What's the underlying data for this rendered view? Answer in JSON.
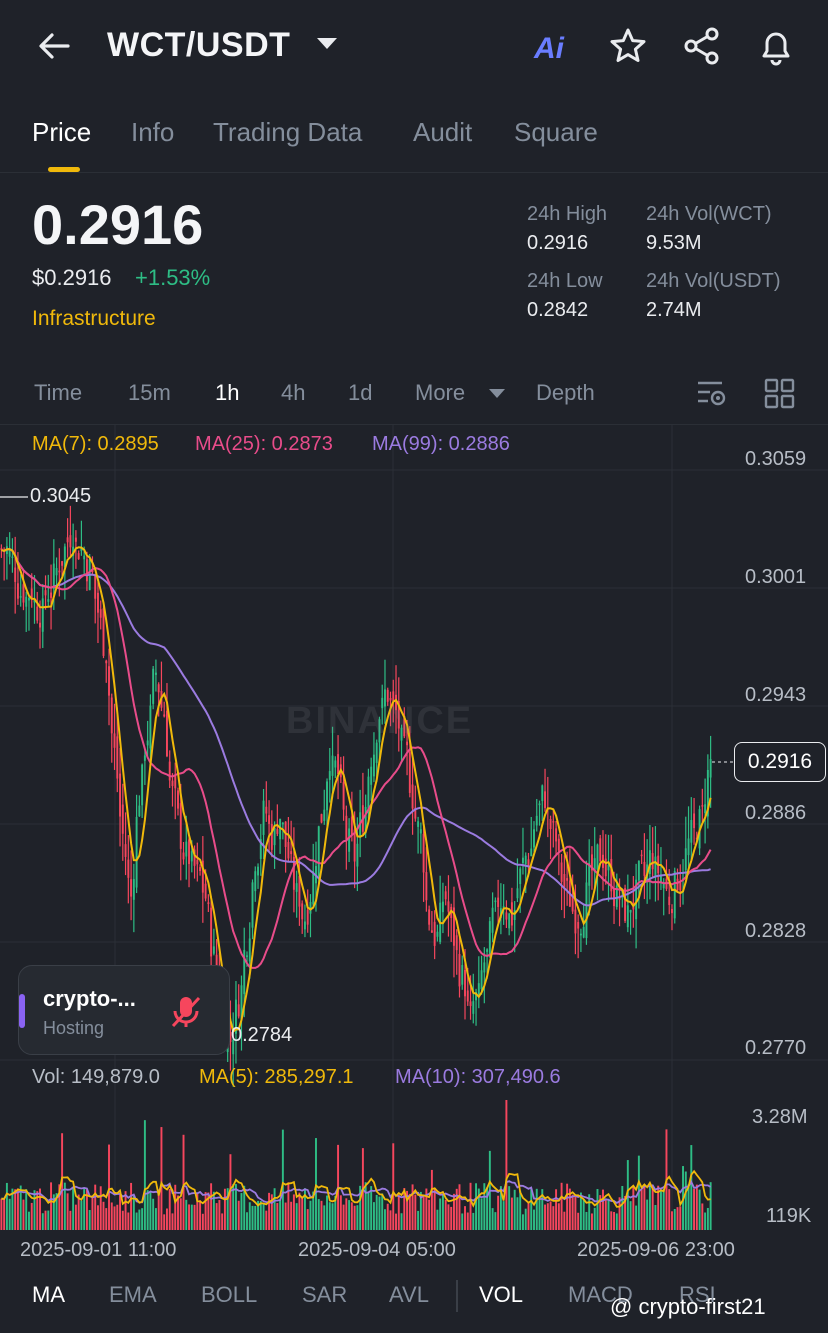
{
  "header": {
    "pair": "WCT/USDT",
    "icons": [
      "back-arrow-icon",
      "dropdown-caret-icon",
      "ai-icon",
      "star-icon",
      "share-icon",
      "bell-icon"
    ],
    "ai_label": "Ai"
  },
  "tabs": [
    {
      "label": "Price",
      "active": true
    },
    {
      "label": "Info"
    },
    {
      "label": "Trading Data"
    },
    {
      "label": "Audit"
    },
    {
      "label": "Square"
    }
  ],
  "price": {
    "last": "0.2916",
    "usd": "$0.2916",
    "change": "+1.53%",
    "category": "Infrastructure"
  },
  "stats": {
    "high_label": "24h High",
    "high": "0.2916",
    "low_label": "24h Low",
    "low": "0.2842",
    "vol_base_label": "24h Vol(WCT)",
    "vol_base": "9.53M",
    "vol_quote_label": "24h Vol(USDT)",
    "vol_quote": "2.74M"
  },
  "intervals": [
    "Time",
    "15m",
    "1h",
    "4h",
    "1d",
    "More",
    "Depth"
  ],
  "active_interval": "1h",
  "ma": {
    "ma7": "MA(7): 0.2895",
    "ma25": "MA(25): 0.2873",
    "ma99": "MA(99): 0.2886"
  },
  "colors": {
    "up": "#2ebd85",
    "down": "#f6465d",
    "ma7": "#f0b90b",
    "ma25": "#e84c8a",
    "ma99": "#9b7be0",
    "accent": "#f0b90b"
  },
  "chart_data": {
    "type": "candlestick",
    "price_axis": [
      "0.3059",
      "0.3001",
      "0.2943",
      "0.2886",
      "0.2828",
      "0.2770"
    ],
    "ylim": [
      0.277,
      0.3059
    ],
    "high_marker": "0.3045",
    "low_marker": "0.2784",
    "last_price_tag": "0.2916",
    "close_series": [
      0.302,
      0.301,
      0.3,
      0.3,
      0.299,
      0.3,
      0.301,
      0.302,
      0.303,
      0.302,
      0.301,
      0.299,
      0.297,
      0.292,
      0.288,
      0.285,
      0.29,
      0.293,
      0.296,
      0.294,
      0.29,
      0.288,
      0.287,
      0.286,
      0.285,
      0.282,
      0.279,
      0.278,
      0.28,
      0.283,
      0.287,
      0.289,
      0.288,
      0.289,
      0.287,
      0.285,
      0.284,
      0.286,
      0.289,
      0.292,
      0.291,
      0.288,
      0.287,
      0.289,
      0.292,
      0.294,
      0.295,
      0.294,
      0.292,
      0.29,
      0.288,
      0.284,
      0.283,
      0.285,
      0.283,
      0.281,
      0.279,
      0.28,
      0.282,
      0.284,
      0.285,
      0.284,
      0.286,
      0.287,
      0.289,
      0.29,
      0.288,
      0.286,
      0.285,
      0.284,
      0.285,
      0.286,
      0.287,
      0.286,
      0.285,
      0.284,
      0.285,
      0.286,
      0.287,
      0.286,
      0.285,
      0.286,
      0.287,
      0.288,
      0.289,
      0.2916
    ],
    "volume_axis": [
      "3.28M",
      "119K"
    ],
    "date_labels": [
      "2025-09-01 11:00",
      "2025-09-04 05:00",
      "2025-09-06 23:00"
    ]
  },
  "volume": {
    "vol": "Vol: 149,879.0",
    "ma5": "MA(5): 285,297.1",
    "ma10": "MA(10): 307,490.6"
  },
  "host_card": {
    "name": "crypto-...",
    "status": "Hosting"
  },
  "indicators": [
    "MA",
    "EMA",
    "BOLL",
    "SAR",
    "AVL",
    "VOL",
    "MACD",
    "RSI"
  ],
  "watermark": "BINANCE",
  "credit": "@ crypto-first21"
}
